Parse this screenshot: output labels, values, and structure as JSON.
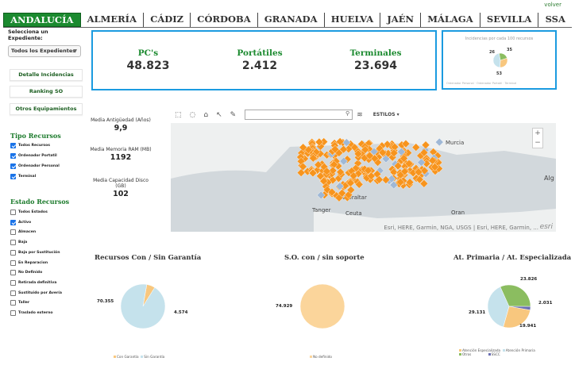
{
  "header": {
    "back_link": "volver"
  },
  "nav": {
    "tabs": [
      "ANDALUCÍA",
      "ALMERÍA",
      "CÁDIZ",
      "CÓRDOBA",
      "GRANADA",
      "HUELVA",
      "JAÉN",
      "MÁLAGA",
      "SEVILLA",
      "SSA"
    ],
    "active": "ANDALUCÍA"
  },
  "sidebar": {
    "select_label": "Selecciona un Expediente:",
    "select_value": "Todos los Expedientes",
    "buttons": {
      "detalle": "Detalle Incidencias",
      "ranking": "Ranking SO",
      "otros": "Otros Equipamientos"
    },
    "tipo_title": "Tipo Recursos",
    "tipo": [
      {
        "label": "Todos Recursos",
        "checked": true
      },
      {
        "label": "Ordenador Portatil",
        "checked": true
      },
      {
        "label": "Ordenador Personal",
        "checked": true
      },
      {
        "label": "Terminal",
        "checked": true
      }
    ],
    "estado_title": "Estado Recursos",
    "estado": [
      {
        "label": "Todos Estados",
        "checked": false
      },
      {
        "label": "Activo",
        "checked": true
      },
      {
        "label": "Almacen",
        "checked": false
      },
      {
        "label": "Baja",
        "checked": false
      },
      {
        "label": "Baja por Sustitución",
        "checked": false
      },
      {
        "label": "En Reparacion",
        "checked": false
      },
      {
        "label": "No Definido",
        "checked": false
      },
      {
        "label": "Retirada definitiva",
        "checked": false
      },
      {
        "label": "Sustituido por Avería",
        "checked": false
      },
      {
        "label": "Taller",
        "checked": false
      },
      {
        "label": "Traslado externo",
        "checked": false
      }
    ]
  },
  "kpi": {
    "pcs": {
      "label": "PC's",
      "value": "48.823"
    },
    "portatiles": {
      "label": "Portátiles",
      "value": "2.412"
    },
    "terminales": {
      "label": "Terminales",
      "value": "23.694"
    }
  },
  "incidencias": {
    "title": "Incidencias por cada 100 recursos",
    "values": [
      26,
      35,
      53
    ],
    "legend": "Ordenador Personal · Ordenador Portatil · Terminal"
  },
  "metrics": {
    "antiguedad": {
      "label": "Media Antigüedad (Años)",
      "value": "9,9"
    },
    "ram": {
      "label": "Media Memoria RAM (MB)",
      "value": "1192"
    },
    "disco": {
      "label": "Media Capacidad Disco (GB)",
      "value": "102"
    }
  },
  "map": {
    "estilos": "ESTILOS",
    "attribution": "Esri, HERE, Garmin, NGA, USGS | Esri, HERE, Garmin, ...",
    "esri": "esri",
    "places": [
      "Murcia",
      "Gibraltar",
      "Tanger",
      "Ceuta",
      "Oran",
      "Alg"
    ],
    "colors": {
      "dots": "#f7941d",
      "dots_alt": "#9fb8d6"
    }
  },
  "charts": {
    "garantia": {
      "title": "Recursos Con / Sin Garantía",
      "legend": [
        "Con Garantía",
        "Sin Garantía"
      ],
      "colors": [
        "#f8c77e",
        "#c5e2ec"
      ]
    },
    "so": {
      "title": "S.O. con / sin soporte",
      "legend": [
        "No definido"
      ],
      "colors": [
        "#fbd59b"
      ]
    },
    "atencion": {
      "title": "At. Primaria / At. Especializada",
      "legend": [
        "Atención Especializada",
        "Atención Primaria",
        "Otros",
        "SSCC"
      ],
      "colors": [
        "#f8c77e",
        "#c5e2ec",
        "#8bbd60",
        "#6a6fb3"
      ]
    }
  },
  "chart_data": [
    {
      "type": "pie",
      "title": "Incidencias por cada 100 recursos",
      "categories": [
        "Ordenador Personal",
        "Ordenador Portatil",
        "Terminal"
      ],
      "values": [
        26,
        35,
        53
      ]
    },
    {
      "type": "pie",
      "title": "Recursos Con / Sin Garantía",
      "categories": [
        "Con Garantía",
        "Sin Garantía"
      ],
      "values": [
        4574,
        70355
      ]
    },
    {
      "type": "pie",
      "title": "S.O. con / sin soporte",
      "categories": [
        "No definido"
      ],
      "values": [
        74929
      ]
    },
    {
      "type": "pie",
      "title": "At. Primaria / At. Especializada",
      "categories": [
        "Atención Especializada",
        "Atención Primaria",
        "Otros",
        "SSCC"
      ],
      "values": [
        19941,
        29131,
        23826,
        2031
      ]
    }
  ]
}
